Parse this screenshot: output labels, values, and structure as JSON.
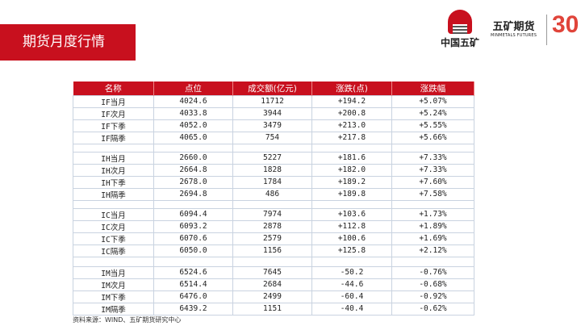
{
  "header": {
    "title": "期货月度行情"
  },
  "logos": {
    "china_minmetals": "中国五矿",
    "minmetals_futures_cn": "五矿期货",
    "minmetals_futures_en": "MINMETALS FUTURES",
    "anniversary": "30"
  },
  "colors": {
    "brand_red": "#c8101e"
  },
  "table": {
    "columns": [
      "名称",
      "点位",
      "成交额(亿元)",
      "涨跌(点)",
      "涨跌幅"
    ],
    "groups": [
      [
        [
          "IF当月",
          "4024.6",
          "11712",
          "+194.2",
          "+5.07%"
        ],
        [
          "IF次月",
          "4033.8",
          "3944",
          "+200.8",
          "+5.24%"
        ],
        [
          "IF下季",
          "4052.0",
          "3479",
          "+213.0",
          "+5.55%"
        ],
        [
          "IF隔季",
          "4065.0",
          "754",
          "+217.8",
          "+5.66%"
        ]
      ],
      [
        [
          "IH当月",
          "2660.0",
          "5227",
          "+181.6",
          "+7.33%"
        ],
        [
          "IH次月",
          "2664.8",
          "1828",
          "+182.0",
          "+7.33%"
        ],
        [
          "IH下季",
          "2678.0",
          "1784",
          "+189.2",
          "+7.60%"
        ],
        [
          "IH隔季",
          "2694.8",
          "486",
          "+189.8",
          "+7.58%"
        ]
      ],
      [
        [
          "IC当月",
          "6094.4",
          "7974",
          "+103.6",
          "+1.73%"
        ],
        [
          "IC次月",
          "6093.2",
          "2878",
          "+112.8",
          "+1.89%"
        ],
        [
          "IC下季",
          "6070.6",
          "2579",
          "+100.6",
          "+1.69%"
        ],
        [
          "IC隔季",
          "6050.0",
          "1156",
          "+125.8",
          "+2.12%"
        ]
      ],
      [
        [
          "IM当月",
          "6524.6",
          "7645",
          "-50.2",
          "-0.76%"
        ],
        [
          "IM次月",
          "6514.4",
          "2684",
          "-44.6",
          "-0.68%"
        ],
        [
          "IM下季",
          "6476.0",
          "2499",
          "-60.4",
          "-0.92%"
        ],
        [
          "IM隔季",
          "6439.2",
          "1151",
          "-40.4",
          "-0.62%"
        ]
      ]
    ]
  },
  "source": "资料来源：WIND、五矿期货研究中心"
}
